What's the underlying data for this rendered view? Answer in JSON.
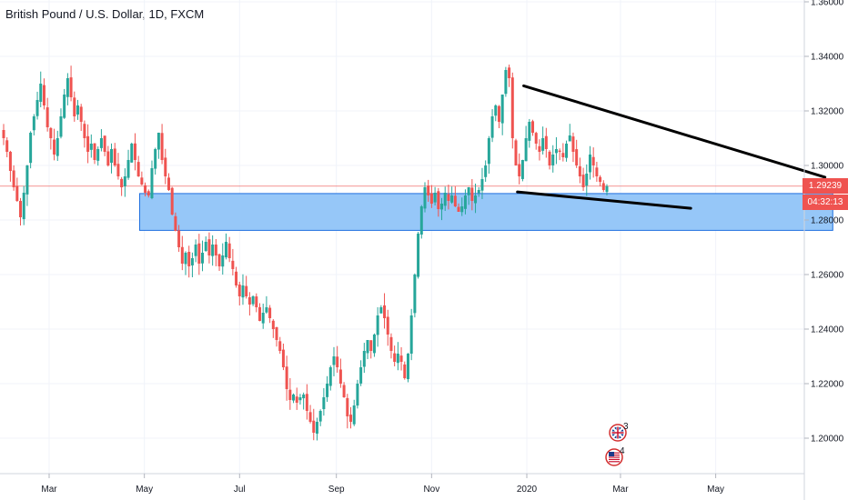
{
  "header": {
    "title": "British Pound / U.S. Dollar, 1D, FXCM"
  },
  "price_axis": {
    "current_price": "1.29239",
    "countdown": "04:32:13",
    "current_price_color": "#ef5350"
  },
  "events": [
    {
      "flag": "uk-flag-icon",
      "count": "3"
    },
    {
      "flag": "us-flag-icon",
      "count": "4"
    }
  ],
  "colors": {
    "up": "#26a69a",
    "down": "#ef5350",
    "zone_fill": "#90c4f8",
    "zone_stroke": "#1e6fe0",
    "trendline": "#000000"
  },
  "chart_data": {
    "type": "candlestick",
    "title": "British Pound / U.S. Dollar, 1D, FXCM",
    "xlabel": "",
    "ylabel": "",
    "ylim": [
      1.186,
      1.36
    ],
    "y_ticks": [
      "1.20000",
      "1.22000",
      "1.24000",
      "1.26000",
      "1.28000",
      "1.30000",
      "1.32000",
      "1.34000",
      "1.36000"
    ],
    "x_ticks": [
      "Mar",
      "May",
      "Jul",
      "Sep",
      "Nov",
      "2020",
      "Mar",
      "May"
    ],
    "grid": true,
    "series": [
      {
        "values": [
          1.31,
          1.305,
          1.298,
          1.292,
          1.287,
          1.281,
          1.29,
          1.3,
          1.312,
          1.318,
          1.324,
          1.33,
          1.322,
          1.314,
          1.31,
          1.304,
          1.31,
          1.318,
          1.326,
          1.332,
          1.325,
          1.318,
          1.322,
          1.316,
          1.31,
          1.305,
          1.308,
          1.302,
          1.306,
          1.31,
          1.305,
          1.3,
          1.306,
          1.3,
          1.296,
          1.292,
          1.296,
          1.302,
          1.308,
          1.302,
          1.296,
          1.293,
          1.29,
          1.289,
          1.299,
          1.306,
          1.312,
          1.302,
          1.296,
          1.291,
          1.282,
          1.276,
          1.27,
          1.264,
          1.268,
          1.263,
          1.266,
          1.271,
          1.264,
          1.268,
          1.272,
          1.267,
          1.271,
          1.267,
          1.263,
          1.267,
          1.272,
          1.266,
          1.262,
          1.256,
          1.252,
          1.256,
          1.252,
          1.249,
          1.252,
          1.248,
          1.243,
          1.246,
          1.248,
          1.244,
          1.24,
          1.236,
          1.232,
          1.226,
          1.218,
          1.214,
          1.216,
          1.213,
          1.215,
          1.216,
          1.21,
          1.206,
          1.202,
          1.206,
          1.21,
          1.215,
          1.22,
          1.226,
          1.23,
          1.226,
          1.22,
          1.215,
          1.208,
          1.206,
          1.212,
          1.22,
          1.226,
          1.232,
          1.236,
          1.232,
          1.238,
          1.245,
          1.248,
          1.244,
          1.238,
          1.232,
          1.228,
          1.231,
          1.228,
          1.222,
          1.231,
          1.245,
          1.26,
          1.275,
          1.285,
          1.292,
          1.289,
          1.286,
          1.29,
          1.284,
          1.286,
          1.29,
          1.287,
          1.289,
          1.285,
          1.283,
          1.285,
          1.289,
          1.292,
          1.287,
          1.289,
          1.291,
          1.295,
          1.3,
          1.31,
          1.318,
          1.322,
          1.316,
          1.326,
          1.335,
          1.332,
          1.31,
          1.3,
          1.296,
          1.302,
          1.31,
          1.316,
          1.312,
          1.308,
          1.305,
          1.31,
          1.306,
          1.3,
          1.304,
          1.306,
          1.305,
          1.303,
          1.308,
          1.311,
          1.305,
          1.3,
          1.296,
          1.292,
          1.297,
          1.304,
          1.3,
          1.296,
          1.294,
          1.291,
          1.29239
        ]
      }
    ],
    "zone": {
      "y_top": 1.2897,
      "y_bottom": 1.2762,
      "x_start": "2019-04-28",
      "x_end": "2020-07-15"
    },
    "trendlines": [
      {
        "from": [
          "2019-12-30",
          1.3292
        ],
        "to": [
          "2020-07-10",
          1.2957
        ]
      },
      {
        "from": [
          "2019-12-26",
          1.2903
        ],
        "to": [
          "2020-04-15",
          1.2843
        ]
      }
    ]
  }
}
